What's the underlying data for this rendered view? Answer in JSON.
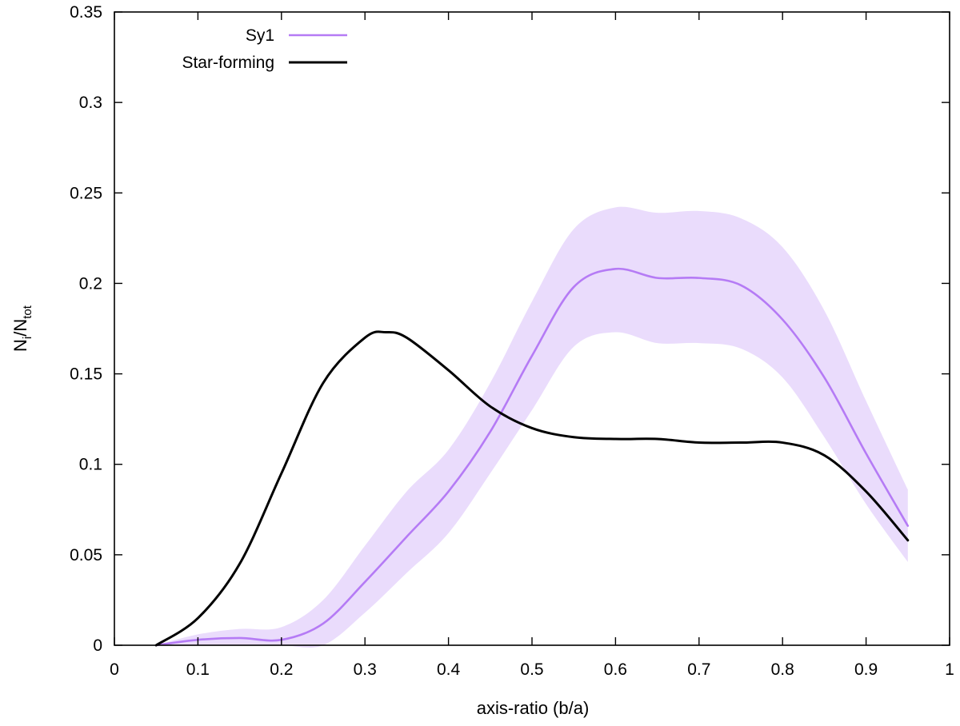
{
  "chart_data": {
    "type": "line",
    "xlabel": "axis-ratio (b/a)",
    "ylabel": {
      "base": "N",
      "sub1": "i",
      "mid": "/N",
      "sub2": "tot"
    },
    "xlim": [
      0,
      1
    ],
    "ylim": [
      0,
      0.35
    ],
    "x_ticks": [
      0,
      0.1,
      0.2,
      0.3,
      0.4,
      0.5,
      0.6,
      0.7,
      0.8,
      0.9,
      1
    ],
    "x_tick_labels": [
      "0",
      "0.1",
      "0.2",
      "0.3",
      "0.4",
      "0.5",
      "0.6",
      "0.7",
      "0.8",
      "0.9",
      "1"
    ],
    "y_ticks": [
      0,
      0.05,
      0.1,
      0.15,
      0.2,
      0.25,
      0.3,
      0.35
    ],
    "y_tick_labels": [
      "0",
      "0.05",
      "0.1",
      "0.15",
      "0.2",
      "0.25",
      "0.3",
      "0.35"
    ],
    "grid": false,
    "legend_position": "top-left",
    "series": [
      {
        "name": "Sy1",
        "color": "#b57bf5",
        "band_color": "#eadcfc",
        "x": [
          0.05,
          0.1,
          0.15,
          0.2,
          0.25,
          0.3,
          0.35,
          0.4,
          0.45,
          0.5,
          0.55,
          0.6,
          0.65,
          0.7,
          0.75,
          0.8,
          0.85,
          0.9,
          0.95
        ],
        "y": [
          0.0,
          0.003,
          0.004,
          0.003,
          0.012,
          0.035,
          0.06,
          0.085,
          0.118,
          0.16,
          0.198,
          0.208,
          0.203,
          0.203,
          0.199,
          0.18,
          0.148,
          0.106,
          0.066
        ],
        "lower": [
          0.0,
          0.0,
          0.0,
          0.0,
          0.0,
          0.018,
          0.04,
          0.062,
          0.095,
          0.13,
          0.165,
          0.173,
          0.167,
          0.167,
          0.164,
          0.148,
          0.115,
          0.078,
          0.046
        ],
        "upper": [
          0.0,
          0.006,
          0.009,
          0.01,
          0.025,
          0.055,
          0.085,
          0.108,
          0.145,
          0.19,
          0.23,
          0.242,
          0.239,
          0.24,
          0.236,
          0.22,
          0.185,
          0.135,
          0.086
        ]
      },
      {
        "name": "Star-forming",
        "color": "#000000",
        "x": [
          0.05,
          0.1,
          0.15,
          0.2,
          0.25,
          0.3,
          0.325,
          0.35,
          0.4,
          0.45,
          0.5,
          0.55,
          0.6,
          0.65,
          0.7,
          0.75,
          0.8,
          0.85,
          0.9,
          0.95
        ],
        "y": [
          0.0,
          0.015,
          0.045,
          0.095,
          0.145,
          0.17,
          0.173,
          0.17,
          0.152,
          0.132,
          0.12,
          0.115,
          0.114,
          0.114,
          0.112,
          0.112,
          0.112,
          0.105,
          0.085,
          0.058
        ]
      }
    ]
  }
}
